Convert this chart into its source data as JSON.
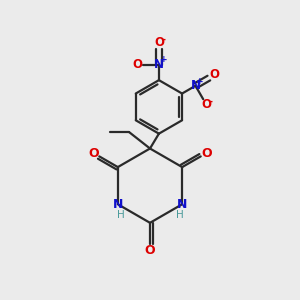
{
  "bg_color": "#ebebeb",
  "bond_color": "#2a2a2a",
  "N_color": "#1010cc",
  "O_color": "#dd0000",
  "H_color": "#4a9a9a",
  "figsize": [
    3.0,
    3.0
  ],
  "dpi": 100,
  "xlim": [
    0,
    10
  ],
  "ylim": [
    0,
    10
  ]
}
